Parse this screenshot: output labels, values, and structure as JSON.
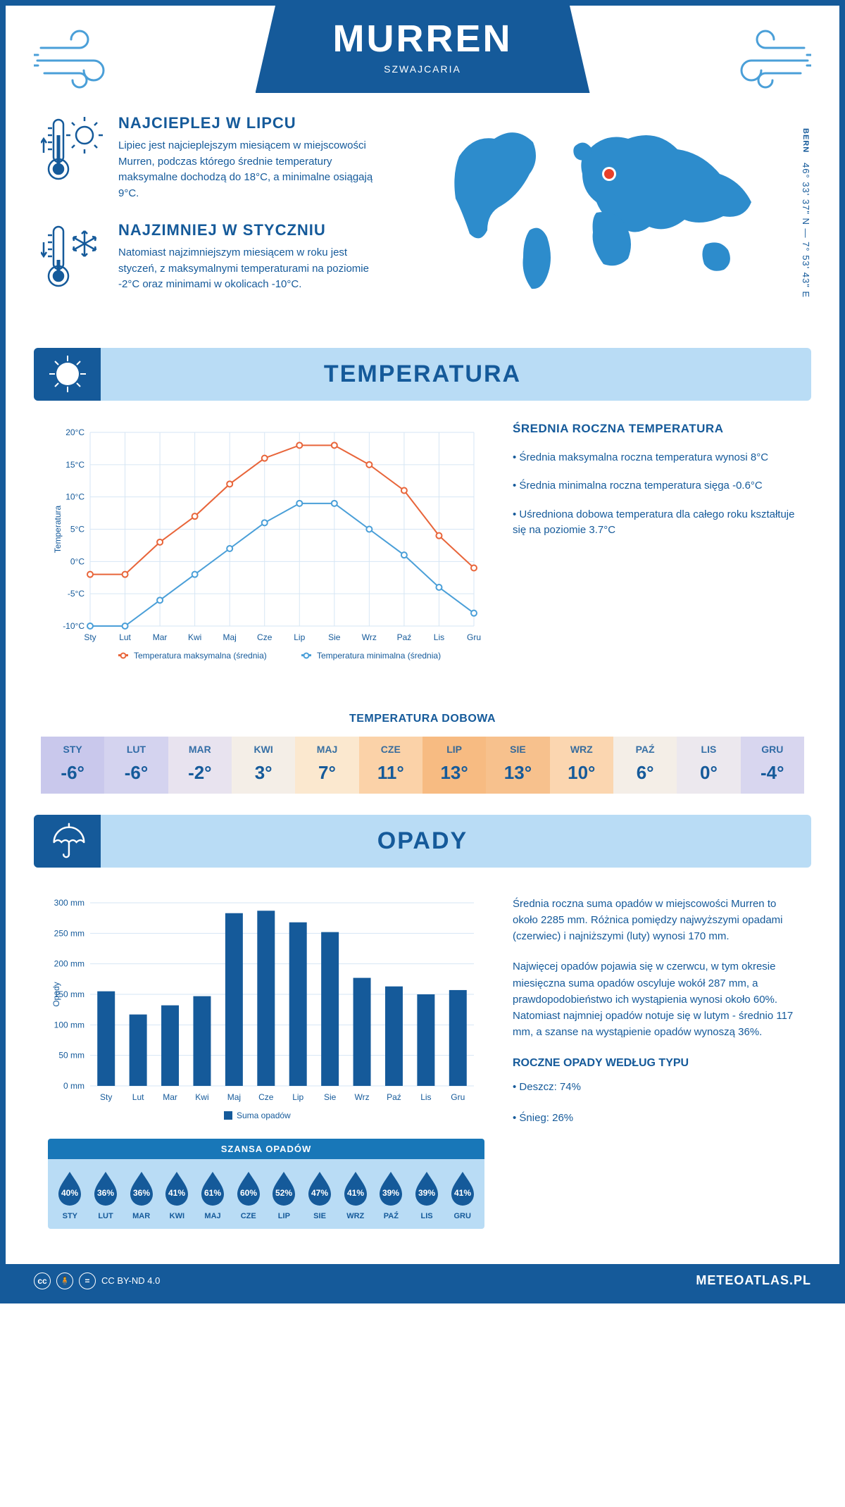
{
  "header": {
    "title": "MURREN",
    "subtitle": "SZWAJCARIA"
  },
  "coords": {
    "lat": "46° 33' 37\" N",
    "lon": "7° 53' 43\" E",
    "capital": "BERN"
  },
  "facts": {
    "warm": {
      "heading": "NAJCIEPLEJ W LIPCU",
      "body": "Lipiec jest najcieplejszym miesiącem w miejscowości Murren, podczas którego średnie temperatury maksymalne dochodzą do 18°C, a minimalne osiągają 9°C."
    },
    "cold": {
      "heading": "NAJZIMNIEJ W STYCZNIU",
      "body": "Natomiast najzimniejszym miesiącem w roku jest styczeń, z maksymalnymi temperaturami na poziomie -2°C oraz minimami w okolicach -10°C."
    }
  },
  "sections": {
    "temperature": "TEMPERATURA",
    "precipitation": "OPADY"
  },
  "months": [
    "Sty",
    "Lut",
    "Mar",
    "Kwi",
    "Maj",
    "Cze",
    "Lip",
    "Sie",
    "Wrz",
    "Paź",
    "Lis",
    "Gru"
  ],
  "months_upper": [
    "STY",
    "LUT",
    "MAR",
    "KWI",
    "MAJ",
    "CZE",
    "LIP",
    "SIE",
    "WRZ",
    "PAŹ",
    "LIS",
    "GRU"
  ],
  "temp_chart": {
    "type": "line",
    "ylabel": "Temperatura",
    "ylim": [
      -10,
      20
    ],
    "ytick_step": 5,
    "ytick_labels": [
      "-10°C",
      "-5°C",
      "0°C",
      "5°C",
      "10°C",
      "15°C",
      "20°C"
    ],
    "series": {
      "max": {
        "label": "Temperatura maksymalna (średnia)",
        "color": "#e8653a",
        "values": [
          -2,
          -2,
          3,
          7,
          12,
          16,
          18,
          18,
          15,
          11,
          4,
          -1
        ]
      },
      "min": {
        "label": "Temperatura minimalna (średnia)",
        "color": "#4a9fd8",
        "values": [
          -10,
          -10,
          -6,
          -2,
          2,
          6,
          9,
          9,
          5,
          1,
          -4,
          -8
        ]
      }
    },
    "grid_color": "#d6e6f4",
    "bg": "#ffffff",
    "marker": "circle",
    "line_width": 2,
    "label_fontsize": 12
  },
  "temp_side": {
    "heading": "ŚREDNIA ROCZNA TEMPERATURA",
    "bullets": [
      "• Średnia maksymalna roczna temperatura wynosi 8°C",
      "• Średnia minimalna roczna temperatura sięga -0.6°C",
      "• Uśredniona dobowa temperatura dla całego roku kształtuje się na poziomie 3.7°C"
    ]
  },
  "daily": {
    "heading": "TEMPERATURA DOBOWA",
    "values": [
      -6,
      -6,
      -2,
      3,
      7,
      11,
      13,
      13,
      10,
      6,
      0,
      -4
    ],
    "colors": [
      "#c9c8ec",
      "#d4d3ef",
      "#e8e3ef",
      "#f4eee7",
      "#fbe8cf",
      "#fbd2a8",
      "#f7bb82",
      "#f7c18d",
      "#fbd6b0",
      "#f4eee7",
      "#ece8ee",
      "#d8d6ef"
    ],
    "text_color": "#155a9a",
    "fontsize_month": 14,
    "fontsize_value": 26
  },
  "precip_chart": {
    "type": "bar",
    "ylabel": "Opady",
    "legend": "Suma opadów",
    "ylim": [
      0,
      300
    ],
    "ytick_step": 50,
    "ytick_labels": [
      "0 mm",
      "50 mm",
      "100 mm",
      "150 mm",
      "200 mm",
      "250 mm",
      "300 mm"
    ],
    "values": [
      155,
      117,
      132,
      147,
      283,
      287,
      268,
      252,
      177,
      163,
      150,
      157
    ],
    "bar_color": "#155a9a",
    "grid_color": "#d6e6f4",
    "bar_width": 0.55
  },
  "precip_text": {
    "p1": "Średnia roczna suma opadów w miejscowości Murren to około 2285 mm. Różnica pomiędzy najwyższymi opadami (czerwiec) i najniższymi (luty) wynosi 170 mm.",
    "p2": "Najwięcej opadów pojawia się w czerwcu, w tym okresie miesięczna suma opadów oscyluje wokół 287 mm, a prawdopodobieństwo ich wystąpienia wynosi około 60%. Natomiast najmniej opadów notuje się w lutym - średnio 117 mm, a szanse na wystąpienie opadów wynoszą 36%.",
    "type_heading": "ROCZNE OPADY WEDŁUG TYPU",
    "type_bullets": [
      "• Deszcz: 74%",
      "• Śnieg: 26%"
    ]
  },
  "chance": {
    "heading": "SZANSA OPADÓW",
    "values": [
      40,
      36,
      36,
      41,
      61,
      60,
      52,
      47,
      41,
      39,
      39,
      41
    ],
    "drop_color": "#155a9a",
    "bg": "#b9dcf5",
    "head_bg": "#1877b8"
  },
  "footer": {
    "license": "CC BY-ND 4.0",
    "site": "METEOATLAS.PL"
  },
  "palette": {
    "primary": "#155a9a",
    "light": "#b9dcf5",
    "accent": "#4a9fd8"
  }
}
